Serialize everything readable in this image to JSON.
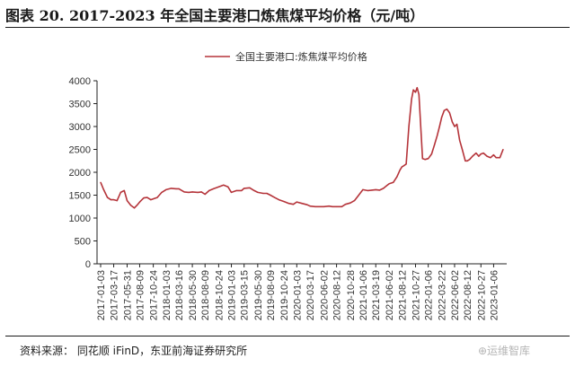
{
  "header": {
    "title": "图表 20. 2017-2023 年全国主要港口炼焦煤平均价格（元/吨）"
  },
  "footer": {
    "source": "资料来源： 同花顺 iFinD，东亚前海证券研究所",
    "watermark": "⊕运维智库"
  },
  "chart_data": {
    "type": "line",
    "title": "",
    "xlabel": "",
    "ylabel": "",
    "ylim": [
      0,
      4000
    ],
    "yticks": [
      0,
      500,
      1000,
      1500,
      2000,
      2500,
      3000,
      3500,
      4000
    ],
    "xticks": [
      "2017-01-03",
      "2017-03-17",
      "2017-05-31",
      "2017-08-09",
      "2017-10-24",
      "2018-01-03",
      "2018-03-16",
      "2018-05-30",
      "2018-08-09",
      "2018-10-24",
      "2019-01-03",
      "2019-03-15",
      "2019-05-30",
      "2019-08-09",
      "2019-10-24",
      "2020-01-03",
      "2020-03-17",
      "2020-06-02",
      "2020-08-12",
      "2020-10-28",
      "2021-01-06",
      "2021-03-19",
      "2021-06-02",
      "2021-08-12",
      "2021-10-27",
      "2022-01-06",
      "2022-03-22",
      "2022-06-02",
      "2022-08-12",
      "2022-10-27",
      "2023-01-06"
    ],
    "legend": {
      "position": "top-center"
    },
    "grid": false,
    "color": "#b5343a",
    "series": [
      {
        "name": "全国主要港口:炼焦煤平均价格",
        "x": [
          "2017-01-03",
          "2017-01-20",
          "2017-02-10",
          "2017-03-01",
          "2017-03-17",
          "2017-04-05",
          "2017-04-25",
          "2017-05-15",
          "2017-05-31",
          "2017-06-20",
          "2017-07-10",
          "2017-07-25",
          "2017-08-09",
          "2017-09-01",
          "2017-09-20",
          "2017-10-10",
          "2017-10-24",
          "2017-11-15",
          "2017-12-10",
          "2018-01-03",
          "2018-02-01",
          "2018-03-01",
          "2018-03-16",
          "2018-04-15",
          "2018-05-10",
          "2018-05-30",
          "2018-06-30",
          "2018-07-20",
          "2018-08-09",
          "2018-09-01",
          "2018-09-25",
          "2018-10-24",
          "2018-11-20",
          "2018-12-15",
          "2019-01-03",
          "2019-02-01",
          "2019-03-01",
          "2019-03-15",
          "2019-04-15",
          "2019-05-10",
          "2019-05-30",
          "2019-06-30",
          "2019-07-20",
          "2019-08-09",
          "2019-09-01",
          "2019-09-25",
          "2019-10-24",
          "2019-11-20",
          "2019-12-15",
          "2020-01-03",
          "2020-02-01",
          "2020-03-01",
          "2020-03-17",
          "2020-04-15",
          "2020-05-10",
          "2020-06-02",
          "2020-07-01",
          "2020-07-20",
          "2020-08-12",
          "2020-09-10",
          "2020-10-01",
          "2020-10-28",
          "2020-11-20",
          "2020-12-10",
          "2021-01-06",
          "2021-02-01",
          "2021-02-25",
          "2021-03-19",
          "2021-04-10",
          "2021-05-01",
          "2021-05-20",
          "2021-06-02",
          "2021-06-25",
          "2021-07-15",
          "2021-08-01",
          "2021-08-12",
          "2021-08-25",
          "2021-09-05",
          "2021-09-20",
          "2021-10-05",
          "2021-10-15",
          "2021-10-27",
          "2021-11-05",
          "2021-11-15",
          "2021-11-25",
          "2021-12-05",
          "2021-12-20",
          "2022-01-06",
          "2022-01-25",
          "2022-02-10",
          "2022-02-25",
          "2022-03-10",
          "2022-03-22",
          "2022-04-05",
          "2022-04-20",
          "2022-05-05",
          "2022-05-20",
          "2022-06-02",
          "2022-06-15",
          "2022-06-30",
          "2022-07-15",
          "2022-08-01",
          "2022-08-12",
          "2022-08-25",
          "2022-09-10",
          "2022-09-30",
          "2022-10-15",
          "2022-10-27",
          "2022-11-10",
          "2022-11-30",
          "2022-12-20",
          "2023-01-06",
          "2023-01-20",
          "2023-02-10",
          "2023-02-28"
        ],
        "values": [
          1780,
          1620,
          1450,
          1400,
          1400,
          1380,
          1560,
          1600,
          1380,
          1280,
          1220,
          1280,
          1350,
          1440,
          1450,
          1400,
          1420,
          1450,
          1560,
          1620,
          1650,
          1640,
          1640,
          1570,
          1560,
          1570,
          1560,
          1570,
          1520,
          1600,
          1640,
          1680,
          1720,
          1680,
          1560,
          1600,
          1600,
          1650,
          1660,
          1600,
          1560,
          1540,
          1540,
          1500,
          1450,
          1400,
          1360,
          1320,
          1300,
          1350,
          1320,
          1290,
          1260,
          1250,
          1250,
          1250,
          1260,
          1250,
          1250,
          1250,
          1300,
          1330,
          1380,
          1480,
          1620,
          1600,
          1610,
          1620,
          1610,
          1650,
          1710,
          1750,
          1780,
          1900,
          2050,
          2120,
          2150,
          2180,
          3000,
          3600,
          3800,
          3750,
          3850,
          3700,
          3000,
          2300,
          2280,
          2300,
          2400,
          2600,
          2800,
          3000,
          3200,
          3350,
          3380,
          3300,
          3100,
          3000,
          3050,
          2700,
          2500,
          2250,
          2250,
          2280,
          2350,
          2420,
          2350,
          2400,
          2420,
          2350,
          2320,
          2380,
          2320,
          2320,
          2500
        ]
      }
    ]
  }
}
